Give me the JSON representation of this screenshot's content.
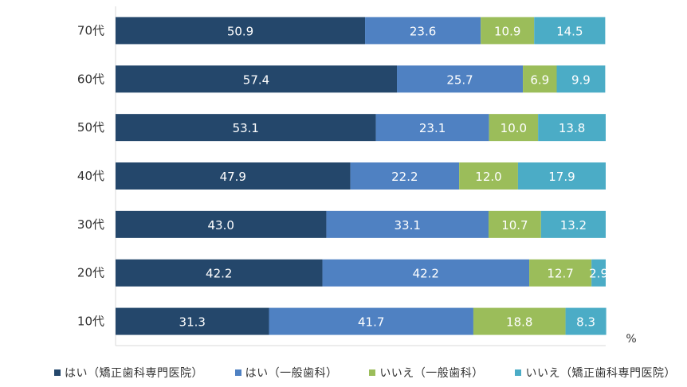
{
  "chart_data": {
    "type": "bar",
    "orientation": "horizontal",
    "stacked": true,
    "title": "",
    "xlabel": "",
    "ylabel": "",
    "unit_label": "%",
    "xlim": [
      0,
      100
    ],
    "grid": false,
    "legend_position": "bottom",
    "categories": [
      "70代",
      "60代",
      "50代",
      "40代",
      "30代",
      "20代",
      "10代"
    ],
    "series": [
      {
        "name": "はい（矯正歯科専門医院）",
        "color": "#24476b",
        "values": [
          50.9,
          57.4,
          53.1,
          47.9,
          43.0,
          42.2,
          31.3
        ]
      },
      {
        "name": "はい（一般歯科）",
        "color": "#4f81c2",
        "values": [
          23.6,
          25.7,
          23.1,
          22.2,
          33.1,
          42.2,
          41.7
        ]
      },
      {
        "name": "いいえ（一般歯科）",
        "color": "#9bbd5a",
        "values": [
          10.9,
          6.9,
          10.0,
          12.0,
          10.7,
          12.7,
          18.8
        ]
      },
      {
        "name": "いいえ（矯正歯科専門医院）",
        "color": "#4bacc6",
        "values": [
          14.5,
          9.9,
          13.8,
          17.9,
          13.2,
          2.9,
          8.3
        ]
      }
    ],
    "data_labels": [
      [
        "50.9",
        "23.6",
        "10.9",
        "14.5"
      ],
      [
        "57.4",
        "25.7",
        "6.9",
        "9.9"
      ],
      [
        "53.1",
        "23.1",
        "10.0",
        "13.8"
      ],
      [
        "47.9",
        "22.2",
        "12.0",
        "17.9"
      ],
      [
        "43.0",
        "33.1",
        "10.7",
        "13.2"
      ],
      [
        "42.2",
        "42.2",
        "12.7",
        "2.9"
      ],
      [
        "31.3",
        "41.7",
        "18.8",
        "8.3"
      ]
    ]
  }
}
